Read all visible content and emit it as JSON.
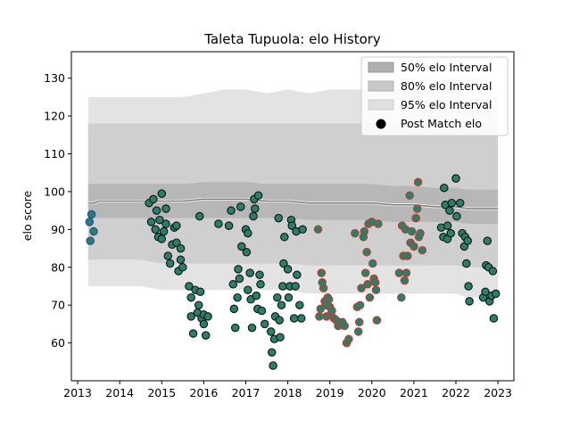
{
  "chart_data": {
    "type": "scatter",
    "title": "Taleta Tupuola: elo History",
    "xlabel": "",
    "ylabel": "elo score",
    "xlim": [
      2012.85,
      2023.38
    ],
    "ylim": [
      50,
      137
    ],
    "x_ticks": [
      2013,
      2014,
      2015,
      2016,
      2017,
      2018,
      2019,
      2020,
      2021,
      2022,
      2023
    ],
    "y_ticks": [
      60,
      70,
      80,
      90,
      100,
      110,
      120,
      130
    ],
    "legend": {
      "position": "top-right",
      "entries": [
        {
          "label": "50% elo Interval",
          "color": "#b0b0b0"
        },
        {
          "label": "80% elo Interval",
          "color": "#c8c8c8"
        },
        {
          "label": "95% elo Interval",
          "color": "#e0e0e0"
        },
        {
          "label": "Post Match elo",
          "color": "#000000"
        }
      ]
    },
    "bands": {
      "x": [
        2013.25,
        2013.4,
        2013.5,
        2014.5,
        2015.0,
        2015.5,
        2016.0,
        2016.5,
        2017.0,
        2017.5,
        2018.0,
        2018.5,
        2019.0,
        2019.5,
        2020.0,
        2020.5,
        2021.0,
        2021.5,
        2022.0,
        2022.3,
        2022.35,
        2022.5,
        2023.0
      ],
      "mean": [
        97,
        97,
        97.5,
        97.5,
        97.5,
        97.5,
        98,
        98,
        98,
        97.5,
        97.5,
        97,
        97,
        97,
        97,
        96.5,
        96.5,
        96,
        96,
        95.5,
        95.5,
        95.5,
        95.5
      ],
      "p50_low": [
        93,
        93,
        93,
        93,
        93,
        93,
        93,
        93,
        93,
        93,
        93,
        92.5,
        92.5,
        92.5,
        92.5,
        92,
        92,
        92,
        92,
        91.5,
        91.5,
        91.5,
        91.5
      ],
      "p50_high": [
        102,
        102,
        102,
        102,
        102,
        102,
        102.5,
        102.5,
        102.5,
        102,
        102,
        102,
        102,
        102,
        102,
        101.5,
        101.5,
        101,
        101,
        100.5,
        100.5,
        100.5,
        100.5
      ],
      "p80_low": [
        82,
        82,
        82,
        82,
        81,
        81,
        81,
        81,
        81,
        81,
        81,
        80.5,
        80.5,
        80.5,
        80.5,
        80.5,
        80.5,
        80.5,
        80.5,
        80,
        80,
        80,
        80
      ],
      "p80_high": [
        118,
        118,
        118,
        118,
        118,
        118,
        118,
        118,
        118,
        118,
        118,
        118,
        118,
        118,
        118,
        118,
        118,
        118,
        118,
        117,
        117,
        117,
        117
      ],
      "p95_low": [
        75,
        75,
        75,
        75,
        74,
        74,
        74,
        74,
        74,
        74,
        74,
        73,
        73,
        73,
        73,
        73,
        73,
        73,
        73,
        72,
        72,
        72,
        72
      ],
      "p95_high": [
        125,
        125,
        125,
        125,
        125,
        125,
        126,
        127,
        127,
        126,
        127,
        126,
        127,
        127,
        127,
        127,
        127,
        127,
        127,
        125,
        125,
        125,
        125
      ]
    },
    "series": [
      {
        "marker_color": "#2a7f6a",
        "edge_color": "#1f4fa0",
        "points": [
          {
            "x": 2013.28,
            "y": 92
          },
          {
            "x": 2013.3,
            "y": 87
          },
          {
            "x": 2013.33,
            "y": 94
          },
          {
            "x": 2013.38,
            "y": 89.5
          }
        ]
      },
      {
        "marker_color": "#2a7f6a",
        "edge_color": "#111111",
        "points": [
          {
            "x": 2014.7,
            "y": 97
          },
          {
            "x": 2014.75,
            "y": 92
          },
          {
            "x": 2014.8,
            "y": 98
          },
          {
            "x": 2014.85,
            "y": 90
          },
          {
            "x": 2014.88,
            "y": 95
          },
          {
            "x": 2014.92,
            "y": 88
          },
          {
            "x": 2014.95,
            "y": 92.5
          },
          {
            "x": 2015.0,
            "y": 99.5
          },
          {
            "x": 2015.0,
            "y": 87.5
          },
          {
            "x": 2015.05,
            "y": 89.5
          },
          {
            "x": 2015.1,
            "y": 95.5
          },
          {
            "x": 2015.1,
            "y": 91.5
          },
          {
            "x": 2015.15,
            "y": 83
          },
          {
            "x": 2015.2,
            "y": 81
          },
          {
            "x": 2015.25,
            "y": 86
          },
          {
            "x": 2015.3,
            "y": 90.5
          },
          {
            "x": 2015.35,
            "y": 91
          },
          {
            "x": 2015.35,
            "y": 86.5
          },
          {
            "x": 2015.4,
            "y": 79
          },
          {
            "x": 2015.45,
            "y": 82
          },
          {
            "x": 2015.5,
            "y": 80
          },
          {
            "x": 2015.45,
            "y": 85
          },
          {
            "x": 2015.65,
            "y": 75
          },
          {
            "x": 2015.7,
            "y": 72
          },
          {
            "x": 2015.7,
            "y": 67
          },
          {
            "x": 2015.75,
            "y": 62.5
          },
          {
            "x": 2015.8,
            "y": 74
          },
          {
            "x": 2015.85,
            "y": 68
          },
          {
            "x": 2015.88,
            "y": 70
          },
          {
            "x": 2015.9,
            "y": 93.5
          },
          {
            "x": 2015.92,
            "y": 73.5
          },
          {
            "x": 2015.95,
            "y": 66.5
          },
          {
            "x": 2016.0,
            "y": 65
          },
          {
            "x": 2016.0,
            "y": 67.5
          },
          {
            "x": 2016.05,
            "y": 62
          },
          {
            "x": 2016.1,
            "y": 67
          },
          {
            "x": 2016.35,
            "y": 91.5
          },
          {
            "x": 2016.6,
            "y": 91
          },
          {
            "x": 2016.65,
            "y": 95
          },
          {
            "x": 2016.7,
            "y": 75.5
          },
          {
            "x": 2016.72,
            "y": 69
          },
          {
            "x": 2016.75,
            "y": 64
          },
          {
            "x": 2016.8,
            "y": 72
          },
          {
            "x": 2016.82,
            "y": 79.5
          },
          {
            "x": 2016.85,
            "y": 77
          },
          {
            "x": 2016.88,
            "y": 96
          },
          {
            "x": 2016.9,
            "y": 85.5
          },
          {
            "x": 2017.0,
            "y": 90
          },
          {
            "x": 2017.02,
            "y": 84
          },
          {
            "x": 2017.05,
            "y": 89
          },
          {
            "x": 2017.05,
            "y": 74
          },
          {
            "x": 2017.1,
            "y": 78.5
          },
          {
            "x": 2017.12,
            "y": 71.5
          },
          {
            "x": 2017.15,
            "y": 64
          },
          {
            "x": 2017.18,
            "y": 93.5
          },
          {
            "x": 2017.2,
            "y": 98
          },
          {
            "x": 2017.22,
            "y": 95.5
          },
          {
            "x": 2017.25,
            "y": 72.5
          },
          {
            "x": 2017.28,
            "y": 69
          },
          {
            "x": 2017.3,
            "y": 99
          },
          {
            "x": 2017.33,
            "y": 78
          },
          {
            "x": 2017.35,
            "y": 75.5
          },
          {
            "x": 2017.38,
            "y": 68.5
          },
          {
            "x": 2017.45,
            "y": 65
          },
          {
            "x": 2017.6,
            "y": 63
          },
          {
            "x": 2017.62,
            "y": 57.5
          },
          {
            "x": 2017.65,
            "y": 54
          },
          {
            "x": 2017.68,
            "y": 61
          },
          {
            "x": 2017.7,
            "y": 67
          },
          {
            "x": 2017.75,
            "y": 72
          },
          {
            "x": 2017.78,
            "y": 93
          },
          {
            "x": 2017.8,
            "y": 66
          },
          {
            "x": 2017.82,
            "y": 61.5
          },
          {
            "x": 2017.85,
            "y": 70
          },
          {
            "x": 2017.88,
            "y": 75
          },
          {
            "x": 2017.9,
            "y": 81
          },
          {
            "x": 2017.92,
            "y": 88
          },
          {
            "x": 2018.0,
            "y": 79.5
          },
          {
            "x": 2018.02,
            "y": 72
          },
          {
            "x": 2018.05,
            "y": 75
          },
          {
            "x": 2018.08,
            "y": 92.5
          },
          {
            "x": 2018.1,
            "y": 91
          },
          {
            "x": 2018.15,
            "y": 66.5
          },
          {
            "x": 2018.18,
            "y": 75
          },
          {
            "x": 2018.2,
            "y": 89.5
          },
          {
            "x": 2018.22,
            "y": 78
          },
          {
            "x": 2018.28,
            "y": 70
          },
          {
            "x": 2018.32,
            "y": 66.5
          },
          {
            "x": 2018.35,
            "y": 90
          },
          {
            "x": 2021.65,
            "y": 90.5
          },
          {
            "x": 2021.7,
            "y": 88
          },
          {
            "x": 2021.72,
            "y": 101
          },
          {
            "x": 2021.75,
            "y": 96.5
          },
          {
            "x": 2021.8,
            "y": 91
          },
          {
            "x": 2021.8,
            "y": 87.5
          },
          {
            "x": 2021.85,
            "y": 95
          },
          {
            "x": 2021.88,
            "y": 89
          },
          {
            "x": 2021.9,
            "y": 97
          },
          {
            "x": 2022.0,
            "y": 103.5
          },
          {
            "x": 2022.02,
            "y": 93.5
          },
          {
            "x": 2022.1,
            "y": 97
          },
          {
            "x": 2022.15,
            "y": 89
          },
          {
            "x": 2022.2,
            "y": 85.5
          },
          {
            "x": 2022.22,
            "y": 88
          },
          {
            "x": 2022.25,
            "y": 81
          },
          {
            "x": 2022.28,
            "y": 87
          },
          {
            "x": 2022.3,
            "y": 75
          },
          {
            "x": 2022.32,
            "y": 71
          },
          {
            "x": 2022.65,
            "y": 72
          },
          {
            "x": 2022.7,
            "y": 73.5
          },
          {
            "x": 2022.72,
            "y": 80.5
          },
          {
            "x": 2022.75,
            "y": 87
          },
          {
            "x": 2022.78,
            "y": 80
          },
          {
            "x": 2022.8,
            "y": 71
          },
          {
            "x": 2022.85,
            "y": 72.5
          },
          {
            "x": 2022.88,
            "y": 79
          },
          {
            "x": 2022.9,
            "y": 66.5
          },
          {
            "x": 2022.95,
            "y": 73
          }
        ]
      },
      {
        "marker_color": "#2a7f6a",
        "edge_color": "#c0392b",
        "points": [
          {
            "x": 2018.72,
            "y": 90
          },
          {
            "x": 2018.75,
            "y": 67
          },
          {
            "x": 2018.78,
            "y": 69
          },
          {
            "x": 2018.8,
            "y": 78.5
          },
          {
            "x": 2018.82,
            "y": 76
          },
          {
            "x": 2018.85,
            "y": 74.5
          },
          {
            "x": 2018.88,
            "y": 71
          },
          {
            "x": 2018.9,
            "y": 70
          },
          {
            "x": 2018.92,
            "y": 67
          },
          {
            "x": 2018.95,
            "y": 72
          },
          {
            "x": 2018.98,
            "y": 71.5
          },
          {
            "x": 2019.0,
            "y": 69.5
          },
          {
            "x": 2019.02,
            "y": 67.5
          },
          {
            "x": 2019.05,
            "y": 68.5
          },
          {
            "x": 2019.1,
            "y": 66.5
          },
          {
            "x": 2019.15,
            "y": 66
          },
          {
            "x": 2019.2,
            "y": 64.5
          },
          {
            "x": 2019.25,
            "y": 65
          },
          {
            "x": 2019.3,
            "y": 65.5
          },
          {
            "x": 2019.35,
            "y": 64.5
          },
          {
            "x": 2019.4,
            "y": 60
          },
          {
            "x": 2019.45,
            "y": 61
          },
          {
            "x": 2019.6,
            "y": 89
          },
          {
            "x": 2019.65,
            "y": 69.5
          },
          {
            "x": 2019.68,
            "y": 63
          },
          {
            "x": 2019.7,
            "y": 65.5
          },
          {
            "x": 2019.72,
            "y": 70
          },
          {
            "x": 2019.75,
            "y": 74.5
          },
          {
            "x": 2019.8,
            "y": 88
          },
          {
            "x": 2019.82,
            "y": 89.5
          },
          {
            "x": 2019.85,
            "y": 78.5
          },
          {
            "x": 2019.88,
            "y": 84
          },
          {
            "x": 2019.9,
            "y": 75.5
          },
          {
            "x": 2019.92,
            "y": 91.5
          },
          {
            "x": 2019.95,
            "y": 72
          },
          {
            "x": 2020.0,
            "y": 92
          },
          {
            "x": 2020.02,
            "y": 81
          },
          {
            "x": 2020.05,
            "y": 77
          },
          {
            "x": 2020.08,
            "y": 76
          },
          {
            "x": 2020.1,
            "y": 74
          },
          {
            "x": 2020.12,
            "y": 66
          },
          {
            "x": 2020.15,
            "y": 91.5
          },
          {
            "x": 2020.65,
            "y": 78.5
          },
          {
            "x": 2020.7,
            "y": 72
          },
          {
            "x": 2020.72,
            "y": 91
          },
          {
            "x": 2020.75,
            "y": 83
          },
          {
            "x": 2020.78,
            "y": 76.5
          },
          {
            "x": 2020.8,
            "y": 90
          },
          {
            "x": 2020.82,
            "y": 78.5
          },
          {
            "x": 2020.85,
            "y": 83
          },
          {
            "x": 2020.9,
            "y": 99
          },
          {
            "x": 2020.92,
            "y": 86.5
          },
          {
            "x": 2020.95,
            "y": 89.5
          },
          {
            "x": 2021.0,
            "y": 85.5
          },
          {
            "x": 2021.05,
            "y": 93
          },
          {
            "x": 2021.08,
            "y": 95.5
          },
          {
            "x": 2021.1,
            "y": 102.5
          },
          {
            "x": 2021.12,
            "y": 88
          },
          {
            "x": 2021.15,
            "y": 89
          },
          {
            "x": 2021.2,
            "y": 84.5
          }
        ]
      }
    ]
  }
}
